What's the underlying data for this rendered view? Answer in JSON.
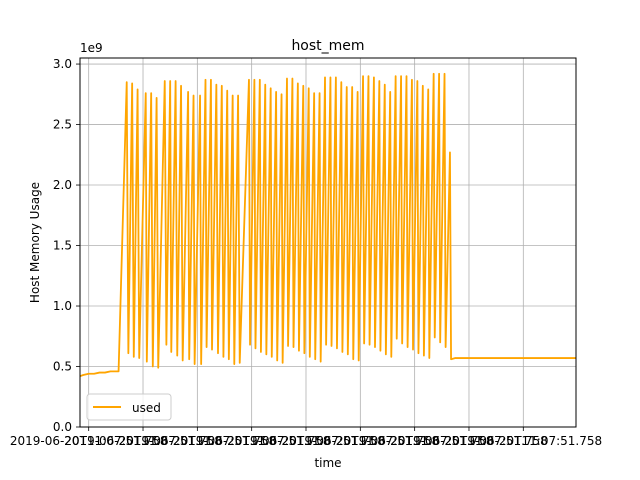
{
  "chart_data": {
    "type": "line",
    "title": "host_mem",
    "xlabel": "time",
    "ylabel": "Host Memory Usage",
    "y_scale_label": "1e9",
    "ylim": [
      0,
      3.05
    ],
    "yticks": [
      0.0,
      0.5,
      1.0,
      1.5,
      2.0,
      2.5,
      3.0
    ],
    "ytick_labels": [
      "0.0",
      "0.5",
      "1.0",
      "1.5",
      "2.0",
      "2.5",
      "3.0"
    ],
    "xlim": [
      -1.6,
      89.7
    ],
    "xticks": [
      0,
      10,
      20,
      30,
      40,
      50,
      60,
      70,
      80
    ],
    "xtick_labels": [
      "2019-06-20T11:07:51.758",
      "2019-06-20T11:07:51.758",
      "2019-06-20T11:07:51.758",
      "2019-06-20T11:07:51.758",
      "2019-06-20T11:07:51.758",
      "2019-06-20T11:07:51.758",
      "2019-06-20T11:07:51.758",
      "2019-06-20T11:07:51.758",
      "2019-06-20T11:07:51.758"
    ],
    "grid": true,
    "legend": {
      "location": "lower left",
      "entries": [
        "used"
      ]
    },
    "series": [
      {
        "name": "used",
        "color": "#FFA500",
        "values": [
          [
            -1.6,
            0.42
          ],
          [
            -1.0,
            0.43
          ],
          [
            0.0,
            0.44
          ],
          [
            1.0,
            0.44
          ],
          [
            2.0,
            0.45
          ],
          [
            3.0,
            0.45
          ],
          [
            4.0,
            0.46
          ],
          [
            4.8,
            0.46
          ],
          [
            5.5,
            0.46
          ],
          [
            7.0,
            2.85
          ],
          [
            7.3,
            0.61
          ],
          [
            8.0,
            2.84
          ],
          [
            8.3,
            0.58
          ],
          [
            9.0,
            2.79
          ],
          [
            9.3,
            0.57
          ],
          [
            10.5,
            2.76
          ],
          [
            10.7,
            0.54
          ],
          [
            11.5,
            2.76
          ],
          [
            11.8,
            0.5
          ],
          [
            12.5,
            2.72
          ],
          [
            12.8,
            0.49
          ],
          [
            14.0,
            2.86
          ],
          [
            14.3,
            0.68
          ],
          [
            15.0,
            2.86
          ],
          [
            15.2,
            0.62
          ],
          [
            16.0,
            2.86
          ],
          [
            16.3,
            0.59
          ],
          [
            17.0,
            2.82
          ],
          [
            17.3,
            0.55
          ],
          [
            18.3,
            2.77
          ],
          [
            18.5,
            0.56
          ],
          [
            19.3,
            2.74
          ],
          [
            19.5,
            0.52
          ],
          [
            20.5,
            2.74
          ],
          [
            20.7,
            0.52
          ],
          [
            21.5,
            2.87
          ],
          [
            21.7,
            0.66
          ],
          [
            22.5,
            2.87
          ],
          [
            22.7,
            0.64
          ],
          [
            23.5,
            2.83
          ],
          [
            23.8,
            0.61
          ],
          [
            24.5,
            2.82
          ],
          [
            24.8,
            0.58
          ],
          [
            25.5,
            2.78
          ],
          [
            25.8,
            0.56
          ],
          [
            26.5,
            2.74
          ],
          [
            26.8,
            0.52
          ],
          [
            27.5,
            2.74
          ],
          [
            27.8,
            0.53
          ],
          [
            29.5,
            2.87
          ],
          [
            29.7,
            0.68
          ],
          [
            30.5,
            2.87
          ],
          [
            30.7,
            0.65
          ],
          [
            31.5,
            2.87
          ],
          [
            31.7,
            0.62
          ],
          [
            32.5,
            2.83
          ],
          [
            32.7,
            0.6
          ],
          [
            33.5,
            2.8
          ],
          [
            33.7,
            0.58
          ],
          [
            34.5,
            2.77
          ],
          [
            34.7,
            0.55
          ],
          [
            35.5,
            2.75
          ],
          [
            35.7,
            0.53
          ],
          [
            36.5,
            2.88
          ],
          [
            36.7,
            0.67
          ],
          [
            37.5,
            2.88
          ],
          [
            37.7,
            0.66
          ],
          [
            38.5,
            2.84
          ],
          [
            38.7,
            0.63
          ],
          [
            39.5,
            2.82
          ],
          [
            39.7,
            0.61
          ],
          [
            40.5,
            2.8
          ],
          [
            40.7,
            0.58
          ],
          [
            41.5,
            2.76
          ],
          [
            41.7,
            0.56
          ],
          [
            42.5,
            2.76
          ],
          [
            42.7,
            0.54
          ],
          [
            43.5,
            2.89
          ],
          [
            43.7,
            0.68
          ],
          [
            44.5,
            2.89
          ],
          [
            44.7,
            0.67
          ],
          [
            45.5,
            2.89
          ],
          [
            45.7,
            0.65
          ],
          [
            46.5,
            2.85
          ],
          [
            46.7,
            0.62
          ],
          [
            47.5,
            2.81
          ],
          [
            47.7,
            0.6
          ],
          [
            48.5,
            2.81
          ],
          [
            48.7,
            0.56
          ],
          [
            49.5,
            2.77
          ],
          [
            49.7,
            0.55
          ],
          [
            50.5,
            2.9
          ],
          [
            50.7,
            0.69
          ],
          [
            51.5,
            2.9
          ],
          [
            51.7,
            0.68
          ],
          [
            52.5,
            2.89
          ],
          [
            52.7,
            0.66
          ],
          [
            53.5,
            2.86
          ],
          [
            53.7,
            0.63
          ],
          [
            54.5,
            2.83
          ],
          [
            54.7,
            0.6
          ],
          [
            55.5,
            2.77
          ],
          [
            55.7,
            0.58
          ],
          [
            56.5,
            2.9
          ],
          [
            56.7,
            0.73
          ],
          [
            57.5,
            2.9
          ],
          [
            57.7,
            0.69
          ],
          [
            58.5,
            2.9
          ],
          [
            58.7,
            0.66
          ],
          [
            59.5,
            2.87
          ],
          [
            59.7,
            0.64
          ],
          [
            60.5,
            2.86
          ],
          [
            60.7,
            0.61
          ],
          [
            61.5,
            2.82
          ],
          [
            61.7,
            0.59
          ],
          [
            62.5,
            2.79
          ],
          [
            62.7,
            0.57
          ],
          [
            63.5,
            2.92
          ],
          [
            63.7,
            0.74
          ],
          [
            64.5,
            2.92
          ],
          [
            64.7,
            0.7
          ],
          [
            65.5,
            2.92
          ],
          [
            65.7,
            0.66
          ],
          [
            66.5,
            2.27
          ],
          [
            66.7,
            0.56
          ],
          [
            67.5,
            0.57
          ],
          [
            68.5,
            0.57
          ],
          [
            69.0,
            0.57
          ],
          [
            89.7,
            0.57
          ]
        ]
      }
    ]
  }
}
